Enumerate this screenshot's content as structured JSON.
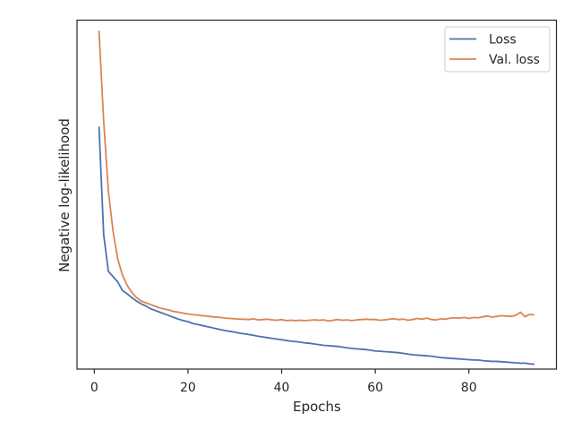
{
  "chart_data": {
    "type": "line",
    "title": "",
    "xlabel": "Epochs",
    "ylabel": "Negative log-likelihood",
    "xlim": [
      -3.7,
      98.7
    ],
    "ylim": [
      0,
      100
    ],
    "x_ticks": [
      0,
      20,
      40,
      60,
      80
    ],
    "y_ticks_labeled": false,
    "grid": false,
    "legend_position": "top-right",
    "colors": {
      "Loss": "#4c72b0",
      "Val. loss": "#dd8452"
    },
    "series": [
      {
        "name": "Loss",
        "x": [
          1,
          2,
          3,
          4,
          5,
          6,
          7,
          8,
          9,
          10,
          11,
          12,
          13,
          14,
          15,
          16,
          17,
          18,
          19,
          20,
          21,
          22,
          23,
          24,
          25,
          26,
          27,
          28,
          29,
          30,
          31,
          32,
          33,
          34,
          35,
          36,
          37,
          38,
          39,
          40,
          41,
          42,
          43,
          44,
          45,
          46,
          47,
          48,
          49,
          50,
          51,
          52,
          53,
          54,
          55,
          56,
          57,
          58,
          59,
          60,
          61,
          62,
          63,
          64,
          65,
          66,
          67,
          68,
          69,
          70,
          71,
          72,
          73,
          74,
          75,
          76,
          77,
          78,
          79,
          80,
          81,
          82,
          83,
          84,
          85,
          86,
          87,
          88,
          89,
          90,
          91,
          92,
          93,
          94
        ],
        "values": [
          69.5,
          38.5,
          28.0,
          26.5,
          25.0,
          22.5,
          21.6,
          20.5,
          19.5,
          18.7,
          18.1,
          17.3,
          16.8,
          16.3,
          15.8,
          15.3,
          14.8,
          14.3,
          13.9,
          13.6,
          13.1,
          12.8,
          12.5,
          12.2,
          11.9,
          11.6,
          11.3,
          11.0,
          10.8,
          10.6,
          10.3,
          10.1,
          9.9,
          9.7,
          9.4,
          9.2,
          9.0,
          8.8,
          8.6,
          8.4,
          8.2,
          8.0,
          7.9,
          7.7,
          7.5,
          7.4,
          7.2,
          7.0,
          6.8,
          6.7,
          6.6,
          6.5,
          6.3,
          6.1,
          5.9,
          5.8,
          5.7,
          5.6,
          5.4,
          5.2,
          5.1,
          5.0,
          4.9,
          4.8,
          4.7,
          4.5,
          4.3,
          4.1,
          4.0,
          3.9,
          3.8,
          3.7,
          3.5,
          3.3,
          3.2,
          3.1,
          3.0,
          2.9,
          2.8,
          2.7,
          2.6,
          2.6,
          2.4,
          2.3,
          2.2,
          2.2,
          2.1,
          2.0,
          1.9,
          1.8,
          1.7,
          1.7,
          1.5,
          1.4
        ]
      },
      {
        "name": "Val. loss",
        "x": [
          1,
          2,
          3,
          4,
          5,
          6,
          7,
          8,
          9,
          10,
          11,
          12,
          13,
          14,
          15,
          16,
          17,
          18,
          19,
          20,
          21,
          22,
          23,
          24,
          25,
          26,
          27,
          28,
          29,
          30,
          31,
          32,
          33,
          34,
          35,
          36,
          37,
          38,
          39,
          40,
          41,
          42,
          43,
          44,
          45,
          46,
          47,
          48,
          49,
          50,
          51,
          52,
          53,
          54,
          55,
          56,
          57,
          58,
          59,
          60,
          61,
          62,
          63,
          64,
          65,
          66,
          67,
          68,
          69,
          70,
          71,
          72,
          73,
          74,
          75,
          76,
          77,
          78,
          79,
          80,
          81,
          82,
          83,
          84,
          85,
          86,
          87,
          88,
          89,
          90,
          91,
          92,
          93,
          94
        ],
        "values": [
          97.0,
          71.0,
          51.0,
          39.5,
          31.5,
          27.0,
          24.0,
          22.0,
          20.5,
          19.5,
          19.0,
          18.5,
          18.0,
          17.5,
          17.2,
          16.9,
          16.5,
          16.3,
          16.0,
          15.8,
          15.6,
          15.5,
          15.3,
          15.2,
          15.0,
          14.9,
          14.8,
          14.6,
          14.5,
          14.4,
          14.3,
          14.3,
          14.2,
          14.4,
          14.1,
          14.2,
          14.3,
          14.1,
          14.0,
          14.2,
          13.9,
          14.0,
          13.9,
          14.0,
          13.9,
          14.0,
          14.1,
          14.0,
          14.1,
          13.8,
          14.0,
          14.2,
          14.0,
          14.1,
          13.9,
          14.1,
          14.2,
          14.3,
          14.2,
          14.2,
          14.0,
          14.1,
          14.3,
          14.4,
          14.2,
          14.3,
          14.0,
          14.2,
          14.5,
          14.3,
          14.6,
          14.2,
          14.1,
          14.4,
          14.3,
          14.6,
          14.7,
          14.6,
          14.8,
          14.5,
          14.8,
          14.7,
          15.0,
          15.2,
          14.9,
          15.1,
          15.3,
          15.2,
          15.1,
          15.4,
          16.3,
          15.0,
          15.7,
          15.5
        ]
      }
    ]
  }
}
